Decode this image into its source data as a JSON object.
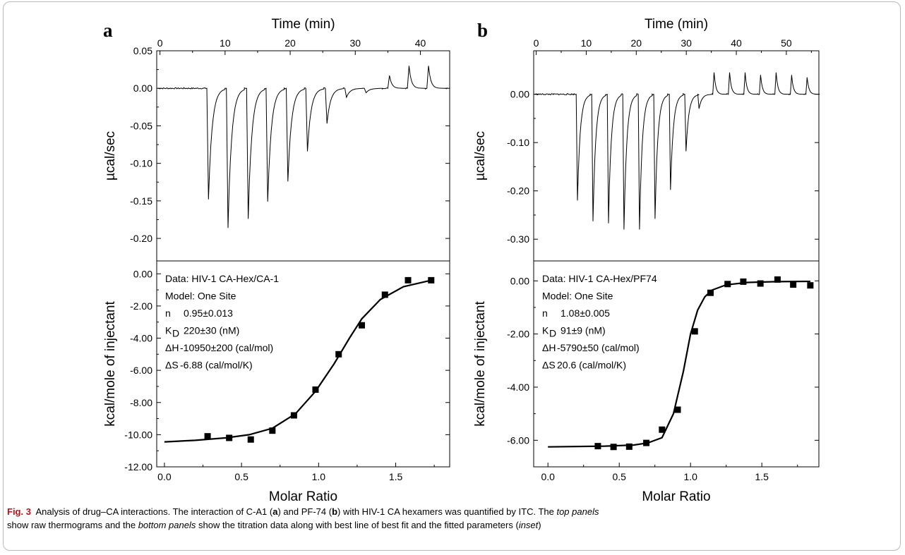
{
  "figure": {
    "label": "Fig. 3",
    "caption_lead": "Analysis of drug–CA interactions. The interaction of C-A1 (",
    "caption_a": "a",
    "caption_mid1": ") and PF-74 (",
    "caption_b": "b",
    "caption_mid2": ") with HIV-1 CA hexamers was quantified by ITC. The ",
    "caption_top": "top panels",
    "caption_mid3": " show raw thermograms and the ",
    "caption_bottom": "bottom panels",
    "caption_mid4": " show the titration data along with best line of best fit and the fitted parameters (",
    "caption_inset": "inset",
    "caption_end": ")"
  },
  "colors": {
    "line": "#000000",
    "caption_label": "#b5121b",
    "frame": "#b9b9b9"
  },
  "chart_data": [
    {
      "panel": "a",
      "type": "line",
      "subplot": "thermogram",
      "xlabel": "Time (min)",
      "ylabel": "µcal/sec",
      "xlim": [
        -0.5,
        44.5
      ],
      "ylim": [
        -0.23,
        0.05
      ],
      "xticks": [
        0,
        10,
        20,
        30,
        40
      ],
      "yticks": [
        0.05,
        0.0,
        -0.05,
        -0.1,
        -0.15,
        -0.2
      ],
      "ytick_labels": [
        "0.05",
        "0.00",
        "-0.05",
        "-0.10",
        "-0.15",
        "-0.20"
      ],
      "baseline": 0.0,
      "peaks": [
        {
          "t": 7.2,
          "y": -0.148
        },
        {
          "t": 10.2,
          "y": -0.186
        },
        {
          "t": 13.3,
          "y": -0.174
        },
        {
          "t": 16.3,
          "y": -0.151
        },
        {
          "t": 19.4,
          "y": -0.124
        },
        {
          "t": 22.4,
          "y": -0.084
        },
        {
          "t": 25.4,
          "y": -0.047
        },
        {
          "t": 28.4,
          "y": -0.012
        },
        {
          "t": 31.4,
          "y": -0.006
        },
        {
          "t": 35.0,
          "y": 0.017
        },
        {
          "t": 38.0,
          "y": 0.03
        },
        {
          "t": 41.0,
          "y": 0.03
        }
      ]
    },
    {
      "panel": "a",
      "type": "scatter",
      "subplot": "titration",
      "xlabel": "Molar Ratio",
      "ylabel": "kcal/mole of injectant",
      "xlim": [
        -0.05,
        1.85
      ],
      "ylim": [
        -12.0,
        0.8
      ],
      "xticks": [
        0.0,
        0.5,
        1.0,
        1.5
      ],
      "xtick_labels": [
        "0.0",
        "0.5",
        "1.0",
        "1.5"
      ],
      "yticks": [
        0,
        -2,
        -4,
        -6,
        -8,
        -10,
        -12
      ],
      "ytick_labels": [
        "0.00",
        "-2.00",
        "-4.00",
        "-6.00",
        "-8.00",
        "-10.00",
        "-12.00"
      ],
      "points": {
        "x": [
          0.28,
          0.42,
          0.56,
          0.7,
          0.84,
          0.98,
          1.13,
          1.28,
          1.43,
          1.58,
          1.73
        ],
        "y": [
          -10.1,
          -10.2,
          -10.3,
          -9.75,
          -8.8,
          -7.2,
          -5.0,
          -3.2,
          -1.3,
          -0.4,
          -0.4
        ]
      },
      "fit": {
        "x": [
          0.0,
          0.2,
          0.4,
          0.55,
          0.7,
          0.85,
          0.98,
          1.1,
          1.2,
          1.28,
          1.4,
          1.55,
          1.73
        ],
        "y": [
          -10.45,
          -10.35,
          -10.2,
          -10.0,
          -9.6,
          -8.7,
          -7.3,
          -5.6,
          -4.0,
          -2.8,
          -1.6,
          -0.8,
          -0.4
        ]
      },
      "inset": [
        {
          "label": "Data: HIV-1 CA-Hex/CA-1"
        },
        {
          "label": "Model: One Site"
        },
        {
          "label": "n",
          "value": "0.95±0.013"
        },
        {
          "label": "K",
          "sub": "D",
          "value": "220±30 (nM)"
        },
        {
          "label": "ΔH",
          "value": "-10950±200 (cal/mol)"
        },
        {
          "label": "ΔS",
          "value": "-6.88 (cal/mol/K)"
        }
      ]
    },
    {
      "panel": "b",
      "type": "line",
      "subplot": "thermogram",
      "xlabel": "Time (min)",
      "ylabel": "µcal/sec",
      "xlim": [
        -0.5,
        56.5
      ],
      "ylim": [
        -0.345,
        0.09
      ],
      "xticks": [
        0,
        10,
        20,
        30,
        40,
        50
      ],
      "yticks": [
        0.0,
        -0.1,
        -0.2,
        -0.3
      ],
      "ytick_labels": [
        "0.00",
        "-0.10",
        "-0.20",
        "-0.30"
      ],
      "baseline": 0.0,
      "peaks": [
        {
          "t": 8.0,
          "y": -0.22
        },
        {
          "t": 11.1,
          "y": -0.263
        },
        {
          "t": 14.2,
          "y": -0.267
        },
        {
          "t": 17.3,
          "y": -0.28
        },
        {
          "t": 20.4,
          "y": -0.28
        },
        {
          "t": 23.5,
          "y": -0.258
        },
        {
          "t": 26.6,
          "y": -0.198
        },
        {
          "t": 29.7,
          "y": -0.118
        },
        {
          "t": 32.3,
          "y": -0.03
        },
        {
          "t": 35.3,
          "y": 0.045
        },
        {
          "t": 38.4,
          "y": 0.045
        },
        {
          "t": 41.5,
          "y": 0.045
        },
        {
          "t": 44.6,
          "y": 0.04
        },
        {
          "t": 47.7,
          "y": 0.045
        },
        {
          "t": 50.8,
          "y": 0.04
        },
        {
          "t": 53.9,
          "y": 0.035
        }
      ]
    },
    {
      "panel": "b",
      "type": "scatter",
      "subplot": "titration",
      "xlabel": "Molar Ratio",
      "ylabel": "kcal/mole of injectant",
      "xlim": [
        -0.1,
        1.9
      ],
      "ylim": [
        -7.0,
        0.75
      ],
      "xticks": [
        0.0,
        0.5,
        1.0,
        1.5
      ],
      "xtick_labels": [
        "0.0",
        "0.5",
        "1.0",
        "1.5"
      ],
      "yticks": [
        0,
        -2,
        -4,
        -6
      ],
      "ytick_labels": [
        "0.00",
        "-2.00",
        "-4.00",
        "-6.00"
      ],
      "points": {
        "x": [
          0.35,
          0.46,
          0.57,
          0.69,
          0.8,
          0.91,
          1.03,
          1.14,
          1.26,
          1.37,
          1.49,
          1.61,
          1.72,
          1.84
        ],
        "y": [
          -6.22,
          -6.25,
          -6.24,
          -6.1,
          -5.6,
          -4.85,
          -1.9,
          -0.45,
          -0.12,
          -0.03,
          -0.1,
          0.05,
          -0.14,
          -0.17
        ]
      },
      "fit": {
        "x": [
          0.0,
          0.4,
          0.6,
          0.7,
          0.8,
          0.88,
          0.95,
          1.0,
          1.05,
          1.1,
          1.15,
          1.25,
          1.4,
          1.6,
          1.84
        ],
        "y": [
          -6.25,
          -6.22,
          -6.18,
          -6.1,
          -5.9,
          -5.0,
          -3.4,
          -2.0,
          -1.1,
          -0.6,
          -0.35,
          -0.15,
          -0.06,
          -0.03,
          -0.02
        ]
      },
      "inset": [
        {
          "label": "Data: HIV-1 CA-Hex/PF74"
        },
        {
          "label": "Model: One Site"
        },
        {
          "label": "n",
          "value": "1.08±0.005"
        },
        {
          "label": "K",
          "sub": "D",
          "value": "91±9 (nM)"
        },
        {
          "label": "ΔH",
          "value": "-5790±50 (cal/mol)"
        },
        {
          "label": "ΔS",
          "value": "20.6 (cal/mol/K)"
        }
      ]
    }
  ]
}
